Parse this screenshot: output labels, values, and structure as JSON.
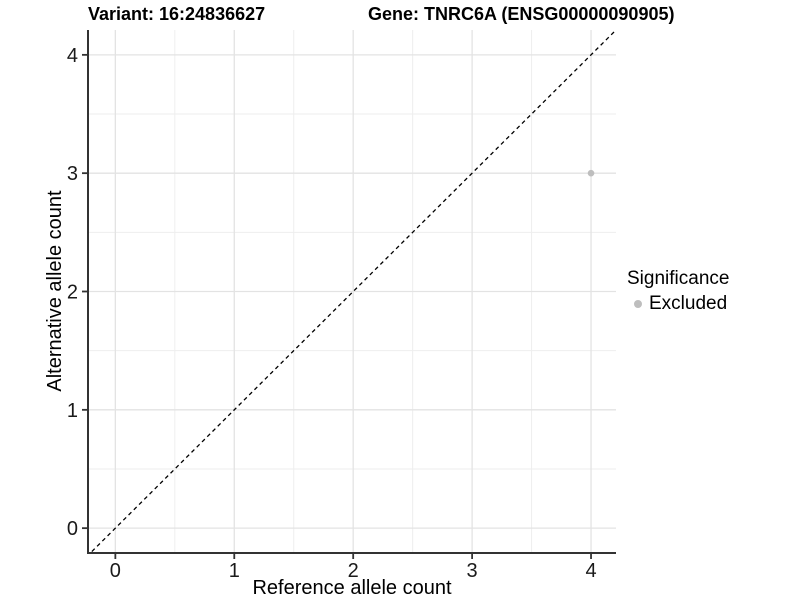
{
  "header": {
    "variant_title": "Variant: 16:24836627",
    "gene_title": "Gene: TNRC6A (ENSG00000090905)"
  },
  "chart_data": {
    "type": "scatter",
    "xlabel": "Reference allele count",
    "ylabel": "Alternative allele count",
    "xlim": [
      -0.23,
      4.21
    ],
    "ylim": [
      -0.21,
      4.21
    ],
    "xticks": [
      0,
      1,
      2,
      3,
      4
    ],
    "yticks": [
      0,
      1,
      2,
      3,
      4
    ],
    "minor_grid_step": 0.5,
    "grid": true,
    "identity_line": {
      "slope": 1,
      "intercept": 0,
      "style": "dashed",
      "color": "#000000"
    },
    "series": [
      {
        "name": "Excluded",
        "color": "#bebebe",
        "points": [
          {
            "x": 4,
            "y": 3
          }
        ]
      }
    ],
    "legend": {
      "title": "Significance",
      "position": "right",
      "items": [
        {
          "label": "Excluded",
          "color": "#bebebe"
        }
      ]
    },
    "colors": {
      "grid_major": "#e3e3e3",
      "grid_minor": "#eeeeee",
      "axis_line": "#333333",
      "tick_mark": "#333333",
      "tick_label": "#1a1a1a",
      "point": "#bebebe",
      "background": "#ffffff"
    }
  }
}
